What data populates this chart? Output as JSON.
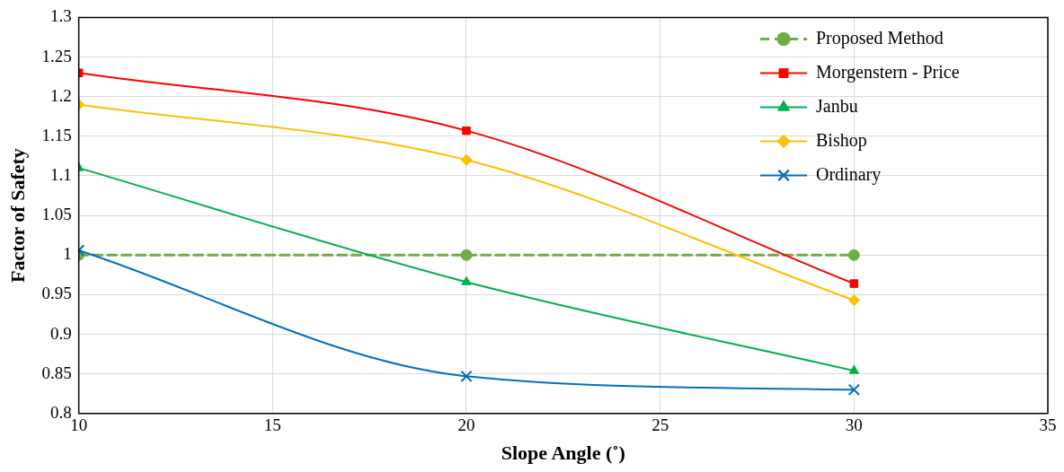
{
  "chart_data": {
    "type": "line",
    "xlabel": "Slope Angle (˚)",
    "ylabel": "Factor of Safety",
    "x": [
      10,
      20,
      30
    ],
    "series": [
      {
        "name": "Proposed Method",
        "color": "#70ad47",
        "values": [
          1,
          1,
          1
        ],
        "marker": "circle",
        "line_style": "dashed"
      },
      {
        "name": "Morgenstern - Price",
        "color": "#ff0000",
        "values": [
          1.23,
          1.157,
          0.964
        ],
        "marker": "square",
        "line_style": "solid"
      },
      {
        "name": "Janbu",
        "color": "#00b050",
        "values": [
          1.11,
          0.966,
          0.854
        ],
        "marker": "triangle",
        "line_style": "solid"
      },
      {
        "name": "Bishop",
        "color": "#ffc000",
        "values": [
          1.19,
          1.12,
          0.943
        ],
        "marker": "diamond",
        "line_style": "solid"
      },
      {
        "name": "Ordinary",
        "color": "#0070c0",
        "values": [
          1.006,
          0.847,
          0.83
        ],
        "marker": "cross",
        "line_style": "solid"
      }
    ],
    "xlim": [
      10,
      35
    ],
    "xticks": [
      10,
      15,
      20,
      25,
      30,
      35
    ],
    "ylim": [
      0.8,
      1.3
    ],
    "yticks": [
      0.8,
      0.85,
      0.9,
      0.95,
      1,
      1.05,
      1.1,
      1.15,
      1.2,
      1.25,
      1.3
    ],
    "grid": true,
    "legend": "top right"
  }
}
